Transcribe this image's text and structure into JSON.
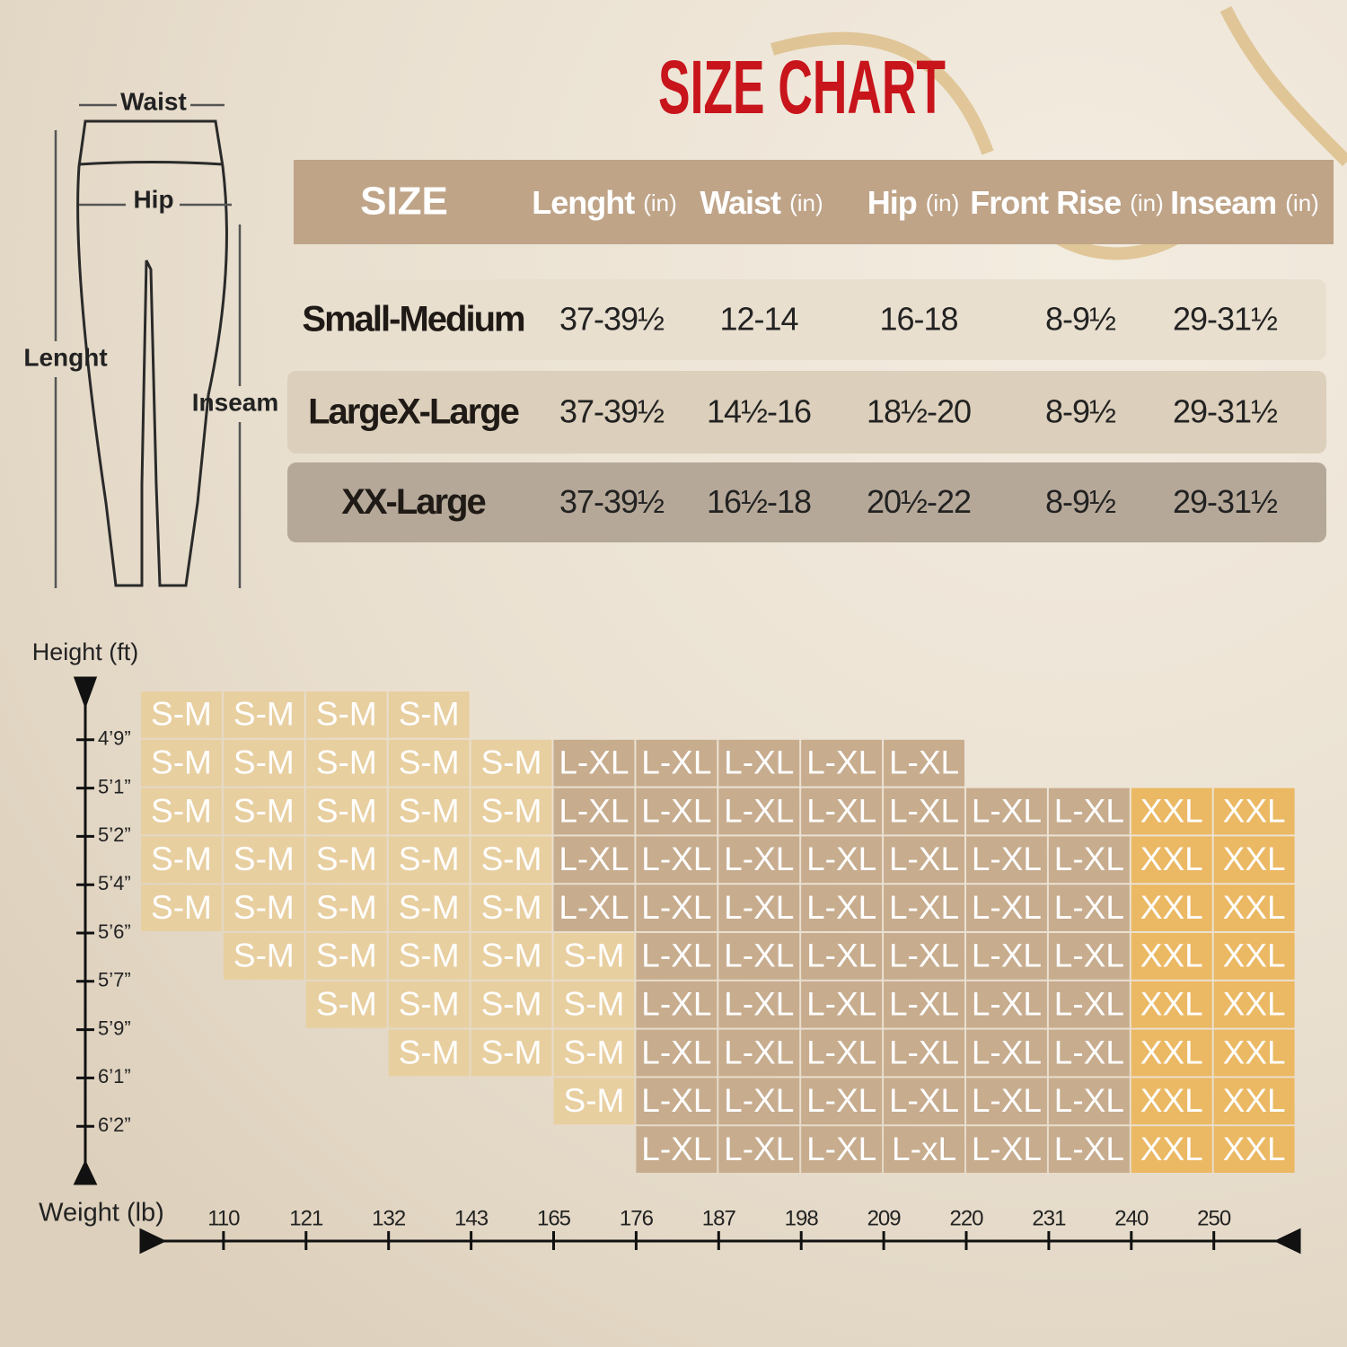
{
  "title": "SIZE CHART",
  "diagram": {
    "waist": "Waist",
    "hip": "Hip",
    "length": "Lenght",
    "inseam": "Inseam"
  },
  "table": {
    "header": {
      "size": "SIZE",
      "columns": [
        {
          "name": "Lenght",
          "unit": "(in)"
        },
        {
          "name": "Waist",
          "unit": "(in)"
        },
        {
          "name": "Hip",
          "unit": "(in)"
        },
        {
          "name": "Front Rise",
          "unit": "(in)"
        },
        {
          "name": "Inseam",
          "unit": "(in)"
        }
      ]
    },
    "rows": [
      {
        "size": "Small-Medium",
        "values": [
          "37-39½",
          "12-14",
          "16-18",
          "8-9½",
          "29-31½"
        ],
        "color": "#e9dfcf"
      },
      {
        "size": "LargeX-Large",
        "values": [
          "37-39½",
          "14½-16",
          "18½-20",
          "8-9½",
          "29-31½"
        ],
        "color": "#dccfbb"
      },
      {
        "size": "XX-Large",
        "values": [
          "37-39½",
          "16½-18",
          "20½-22",
          "8-9½",
          "29-31½"
        ],
        "color": "#b5a898"
      }
    ]
  },
  "grid": {
    "height_label": "Height (ft)",
    "weight_label": "Weight (lb)",
    "heights": [
      "4’9”",
      "5’1”",
      "5’2”",
      "5’4”",
      "5’6”",
      "5’7”",
      "5’9”",
      "6’1”",
      "6’2”"
    ],
    "weights": [
      "110",
      "121",
      "132",
      "143",
      "165",
      "176",
      "187",
      "198",
      "209",
      "220",
      "231",
      "240",
      "250"
    ],
    "palette": {
      "l": "#e8cfa0",
      "m": "#c7ac8e",
      "g": "#ebb863"
    },
    "tones": [
      "llll----------",
      "lllllmmmmm----",
      "lllllmmmmmmmgg",
      "lllllmmmmmmmgg",
      "lllllmmmmmmmgg",
      "-lllllmmmmmmgg",
      "--llllmmmmmmgg",
      "---lllmmmmmmgg",
      "-----lmmmmmmgg",
      "------mmmmmmgg"
    ],
    "rows": [
      [
        "S-M",
        "S-M",
        "S-M",
        "S-M",
        null,
        null,
        null,
        null,
        null,
        null,
        null,
        null,
        null,
        null
      ],
      [
        "S-M",
        "S-M",
        "S-M",
        "S-M",
        "S-M",
        "L-XL",
        "L-XL",
        "L-XL",
        "L-XL",
        "L-XL",
        null,
        null,
        null,
        null
      ],
      [
        "S-M",
        "S-M",
        "S-M",
        "S-M",
        "S-M",
        "L-XL",
        "L-XL",
        "L-XL",
        "L-XL",
        "L-XL",
        "L-XL",
        "L-XL",
        "XXL",
        "XXL"
      ],
      [
        "S-M",
        "S-M",
        "S-M",
        "S-M",
        "S-M",
        "L-XL",
        "L-XL",
        "L-XL",
        "L-XL",
        "L-XL",
        "L-XL",
        "L-XL",
        "XXL",
        "XXL"
      ],
      [
        "S-M",
        "S-M",
        "S-M",
        "S-M",
        "S-M",
        "L-XL",
        "L-XL",
        "L-XL",
        "L-XL",
        "L-XL",
        "L-XL",
        "L-XL",
        "XXL",
        "XXL"
      ],
      [
        null,
        "S-M",
        "S-M",
        "S-M",
        "S-M",
        "S-M",
        "L-XL",
        "L-XL",
        "L-XL",
        "L-XL",
        "L-XL",
        "L-XL",
        "XXL",
        "XXL"
      ],
      [
        null,
        null,
        "S-M",
        "S-M",
        "S-M",
        "S-M",
        "L-XL",
        "L-XL",
        "L-XL",
        "L-XL",
        "L-XL",
        "L-XL",
        "XXL",
        "XXL"
      ],
      [
        null,
        null,
        null,
        "S-M",
        "S-M",
        "S-M",
        "L-XL",
        "L-XL",
        "L-XL",
        "L-XL",
        "L-XL",
        "L-XL",
        "XXL",
        "XXL"
      ],
      [
        null,
        null,
        null,
        null,
        null,
        "S-M",
        "L-XL",
        "L-XL",
        "L-XL",
        "L-XL",
        "L-XL",
        "L-XL",
        "XXL",
        "XXL"
      ],
      [
        null,
        null,
        null,
        null,
        null,
        null,
        "L-XL",
        "L-XL",
        "L-XL",
        "L-xL",
        "L-XL",
        "L-XL",
        "XXL",
        "XXL"
      ]
    ]
  }
}
